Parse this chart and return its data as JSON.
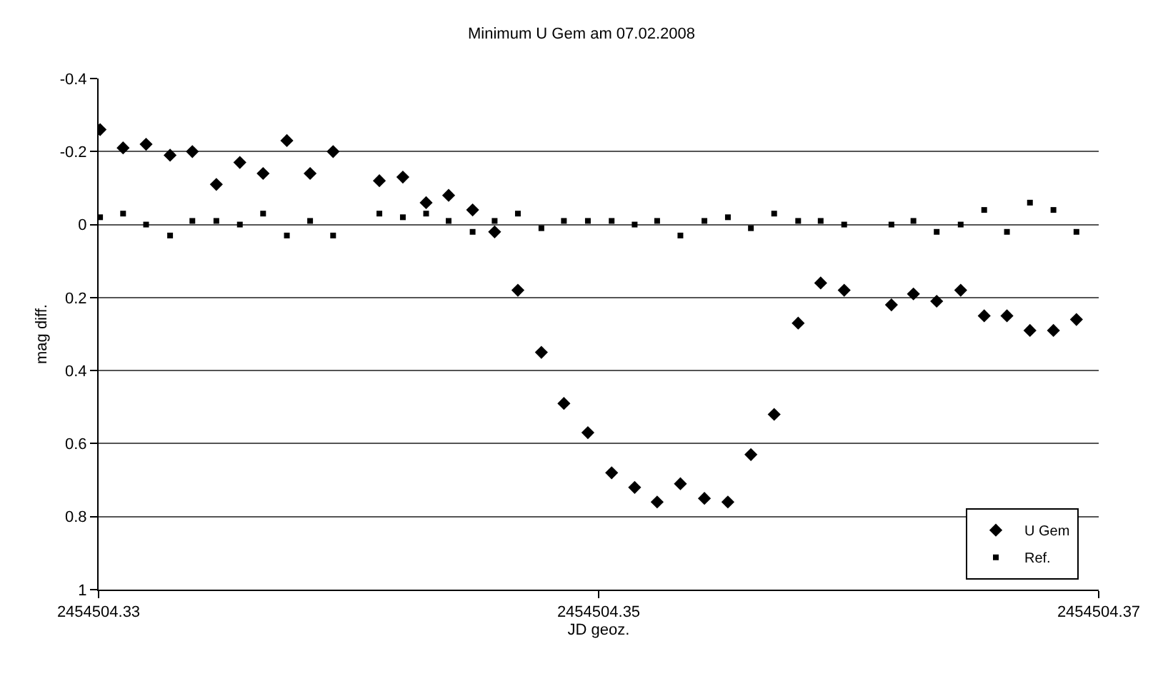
{
  "chart_data": {
    "type": "scatter",
    "title": "Minimum U Gem am 07.02.2008",
    "xlabel": "JD geoz.",
    "ylabel": "mag diff.",
    "series": [
      {
        "name": "U Gem",
        "color": "#000000",
        "marker": "diamond",
        "x": [
          2454504.33006,
          2454504.33098,
          2454504.3319,
          2454504.33286,
          2454504.33375,
          2454504.33471,
          2454504.33565,
          2454504.33658,
          2454504.33753,
          2454504.33846,
          2454504.33938,
          2454504.34123,
          2454504.34217,
          2454504.3431,
          2454504.344,
          2454504.34496,
          2454504.34584,
          2454504.34677,
          2454504.34771,
          2454504.34861,
          2454504.34957,
          2454504.35052,
          2454504.35144,
          2454504.35234,
          2454504.35327,
          2454504.35423,
          2454504.35517,
          2454504.35609,
          2454504.35702,
          2454504.35798,
          2454504.35888,
          2454504.35982,
          2454504.36171,
          2454504.36259,
          2454504.36352,
          2454504.36448,
          2454504.36542,
          2454504.36633,
          2454504.36725,
          2454504.36819,
          2454504.36911
        ],
        "values": [
          -0.26,
          -0.21,
          -0.22,
          -0.19,
          -0.2,
          -0.11,
          -0.17,
          -0.14,
          -0.23,
          -0.14,
          -0.2,
          -0.12,
          -0.13,
          -0.06,
          -0.08,
          -0.04,
          0.02,
          0.18,
          0.35,
          0.49,
          0.57,
          0.68,
          0.72,
          0.76,
          0.71,
          0.75,
          0.76,
          0.63,
          0.52,
          0.27,
          0.16,
          0.18,
          0.22,
          0.19,
          0.21,
          0.18,
          0.25,
          0.25,
          0.29,
          0.29,
          0.26
        ]
      },
      {
        "name": "Ref.",
        "color": "#000000",
        "marker": "square",
        "x": [
          2454504.33006,
          2454504.33098,
          2454504.3319,
          2454504.33286,
          2454504.33375,
          2454504.33471,
          2454504.33565,
          2454504.33658,
          2454504.33753,
          2454504.33846,
          2454504.33938,
          2454504.34123,
          2454504.34217,
          2454504.3431,
          2454504.344,
          2454504.34496,
          2454504.34584,
          2454504.34677,
          2454504.34771,
          2454504.34861,
          2454504.34957,
          2454504.35052,
          2454504.35144,
          2454504.35234,
          2454504.35327,
          2454504.35423,
          2454504.35517,
          2454504.35609,
          2454504.35702,
          2454504.35798,
          2454504.35888,
          2454504.35982,
          2454504.36171,
          2454504.36259,
          2454504.36352,
          2454504.36448,
          2454504.36542,
          2454504.36633,
          2454504.36725,
          2454504.36819,
          2454504.36911
        ],
        "values": [
          -0.02,
          -0.03,
          0.0,
          0.03,
          -0.01,
          -0.01,
          0.0,
          -0.03,
          0.03,
          -0.01,
          0.03,
          -0.03,
          -0.02,
          -0.03,
          -0.01,
          0.02,
          -0.01,
          -0.03,
          0.01,
          -0.01,
          -0.01,
          -0.01,
          0.0,
          -0.01,
          0.03,
          -0.01,
          -0.02,
          0.01,
          -0.03,
          -0.01,
          -0.01,
          0.0,
          0.0,
          -0.01,
          0.02,
          0.0,
          -0.04,
          0.02,
          -0.06,
          -0.04,
          0.02
        ]
      }
    ],
    "xlim": [
      2454504.33,
      2454504.37
    ],
    "xticks": [
      {
        "value": 2454504.33,
        "label": "2454504.33"
      },
      {
        "value": 2454504.35,
        "label": "2454504.35"
      },
      {
        "value": 2454504.37,
        "label": "2454504.37"
      }
    ],
    "ylim": [
      1,
      -0.4
    ],
    "yticks": [
      -0.4,
      -0.2,
      0,
      0.2,
      0.4,
      0.6,
      0.8,
      1
    ],
    "grid": "y",
    "legend": "bottom right"
  }
}
